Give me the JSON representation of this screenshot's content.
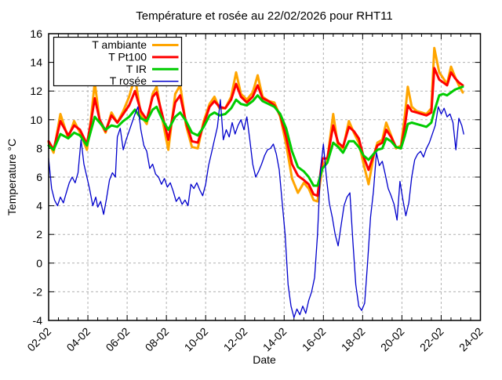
{
  "title": "Température et rosée au 22/02/2026 pour RHT11",
  "chart_data": {
    "type": "line",
    "title": "Température et rosée au 22/02/2026 pour RHT11",
    "xlabel": "Date",
    "ylabel": "Temperature °C",
    "xlim_days": [
      2,
      24
    ],
    "ylim": [
      -4,
      16
    ],
    "grid": true,
    "legend_position": "top-left",
    "grid_color": "#b0b0b0",
    "x_tick_labels": [
      "02-02",
      "04-02",
      "06-02",
      "08-02",
      "10-02",
      "12-02",
      "14-02",
      "16-02",
      "18-02",
      "20-02",
      "22-02",
      "24-02"
    ],
    "x_tick_days": [
      2,
      4,
      6,
      8,
      10,
      12,
      14,
      16,
      18,
      20,
      22,
      24
    ],
    "x_minor_step_days": 0.5,
    "y_ticks": [
      -4,
      -2,
      0,
      2,
      4,
      6,
      8,
      10,
      12,
      14,
      16
    ],
    "series": [
      {
        "name": "T ambiante",
        "color": "#ffa500",
        "width": 3,
        "x": [
          2.0,
          2.25,
          2.6,
          3.0,
          3.3,
          3.6,
          3.95,
          4.15,
          4.35,
          4.6,
          4.9,
          5.2,
          5.5,
          5.8,
          6.1,
          6.4,
          6.7,
          7.0,
          7.3,
          7.5,
          7.8,
          8.1,
          8.45,
          8.7,
          9.0,
          9.3,
          9.6,
          9.9,
          10.2,
          10.45,
          10.7,
          11.0,
          11.3,
          11.55,
          11.8,
          12.1,
          12.4,
          12.65,
          12.9,
          13.2,
          13.5,
          13.8,
          14.1,
          14.4,
          14.7,
          15.0,
          15.25,
          15.5,
          15.7,
          15.95,
          16.2,
          16.5,
          16.75,
          17.0,
          17.3,
          17.55,
          17.8,
          18.05,
          18.3,
          18.55,
          18.75,
          19.0,
          19.2,
          19.45,
          19.7,
          19.95,
          20.15,
          20.3,
          20.5,
          20.75,
          21.0,
          21.25,
          21.5,
          21.65,
          21.9,
          22.1,
          22.3,
          22.5,
          22.7,
          22.9,
          23.1
        ],
        "y": [
          8.4,
          7.7,
          10.4,
          8.7,
          9.9,
          9.1,
          7.9,
          10.0,
          12.6,
          9.9,
          9.1,
          10.5,
          9.8,
          10.6,
          11.6,
          13.0,
          10.3,
          9.7,
          11.8,
          12.3,
          10.0,
          7.9,
          11.8,
          12.4,
          9.6,
          8.1,
          8.0,
          9.9,
          11.1,
          11.6,
          10.8,
          10.8,
          11.6,
          13.3,
          11.8,
          11.4,
          11.9,
          13.1,
          11.6,
          11.3,
          11.2,
          10.2,
          8.3,
          5.9,
          4.9,
          5.6,
          5.2,
          4.4,
          4.3,
          6.8,
          7.2,
          10.4,
          8.1,
          8.0,
          9.9,
          9.1,
          8.4,
          6.9,
          5.5,
          7.4,
          8.4,
          8.6,
          9.8,
          8.9,
          8.0,
          8.2,
          10.3,
          12.3,
          10.9,
          10.6,
          10.5,
          10.4,
          10.8,
          15.0,
          13.3,
          12.9,
          12.5,
          13.7,
          13.0,
          12.4,
          11.9
        ]
      },
      {
        "name": "T Pt100",
        "color": "#ff0000",
        "width": 3,
        "x": [
          2.0,
          2.25,
          2.6,
          3.0,
          3.3,
          3.6,
          3.95,
          4.15,
          4.35,
          4.6,
          4.9,
          5.2,
          5.5,
          5.8,
          6.1,
          6.4,
          6.7,
          7.0,
          7.3,
          7.5,
          7.8,
          8.1,
          8.45,
          8.7,
          9.0,
          9.3,
          9.6,
          9.9,
          10.2,
          10.45,
          10.7,
          11.0,
          11.3,
          11.55,
          11.8,
          12.1,
          12.4,
          12.65,
          12.9,
          13.2,
          13.5,
          13.8,
          14.1,
          14.4,
          14.7,
          15.0,
          15.25,
          15.5,
          15.7,
          15.95,
          16.2,
          16.5,
          16.75,
          17.0,
          17.3,
          17.55,
          17.8,
          18.05,
          18.3,
          18.55,
          18.75,
          19.0,
          19.2,
          19.45,
          19.7,
          19.95,
          20.15,
          20.3,
          20.5,
          20.75,
          21.0,
          21.25,
          21.5,
          21.65,
          21.9,
          22.1,
          22.3,
          22.5,
          22.7,
          22.9,
          23.1
        ],
        "y": [
          8.5,
          7.9,
          9.9,
          8.9,
          9.6,
          9.3,
          8.3,
          9.8,
          11.5,
          10.0,
          9.2,
          10.3,
          9.8,
          10.4,
          11.0,
          12.0,
          10.6,
          10.0,
          11.6,
          11.9,
          10.3,
          8.6,
          11.2,
          11.7,
          9.8,
          8.5,
          8.4,
          9.7,
          10.9,
          11.3,
          10.9,
          10.8,
          11.4,
          12.5,
          11.6,
          11.2,
          11.6,
          12.4,
          11.5,
          11.3,
          11.0,
          10.3,
          8.8,
          6.9,
          6.1,
          5.8,
          5.5,
          4.8,
          4.7,
          7.3,
          7.3,
          9.6,
          8.4,
          8.1,
          9.5,
          9.2,
          8.7,
          7.4,
          6.5,
          7.5,
          8.2,
          8.4,
          9.3,
          8.8,
          8.1,
          8.0,
          9.6,
          11.0,
          10.6,
          10.5,
          10.4,
          10.3,
          10.5,
          13.6,
          12.8,
          12.6,
          12.4,
          13.3,
          12.9,
          12.6,
          12.4
        ]
      },
      {
        "name": "T IR",
        "color": "#00cc00",
        "width": 3,
        "x": [
          2.0,
          2.25,
          2.6,
          3.0,
          3.3,
          3.6,
          3.95,
          4.15,
          4.35,
          4.6,
          4.9,
          5.2,
          5.5,
          5.8,
          6.1,
          6.4,
          6.7,
          7.0,
          7.3,
          7.5,
          7.8,
          8.1,
          8.45,
          8.7,
          9.0,
          9.3,
          9.6,
          9.9,
          10.2,
          10.45,
          10.7,
          11.0,
          11.3,
          11.55,
          11.8,
          12.1,
          12.4,
          12.65,
          12.9,
          13.2,
          13.5,
          13.8,
          14.1,
          14.4,
          14.7,
          15.0,
          15.25,
          15.5,
          15.7,
          15.95,
          16.2,
          16.5,
          16.75,
          17.0,
          17.3,
          17.55,
          17.8,
          18.05,
          18.3,
          18.55,
          18.75,
          19.0,
          19.2,
          19.45,
          19.7,
          19.95,
          20.15,
          20.3,
          20.5,
          20.75,
          21.0,
          21.25,
          21.5,
          21.65,
          21.9,
          22.1,
          22.3,
          22.5,
          22.7,
          22.9,
          23.1
        ],
        "y": [
          8.2,
          7.9,
          9.0,
          8.7,
          9.1,
          8.9,
          8.2,
          9.2,
          10.2,
          9.8,
          9.3,
          9.6,
          9.5,
          9.9,
          10.2,
          10.7,
          10.1,
          9.9,
          10.7,
          10.9,
          10.0,
          9.3,
          10.2,
          10.5,
          9.9,
          9.1,
          8.9,
          9.5,
          10.3,
          10.5,
          10.3,
          10.4,
          10.8,
          11.4,
          11.1,
          11.0,
          11.3,
          11.7,
          11.3,
          11.1,
          10.9,
          10.4,
          9.4,
          7.8,
          6.7,
          6.4,
          6.0,
          5.4,
          5.4,
          6.6,
          7.0,
          8.4,
          8.1,
          7.7,
          8.5,
          8.5,
          8.1,
          7.5,
          7.2,
          7.6,
          7.9,
          8.0,
          8.7,
          8.5,
          8.1,
          8.0,
          8.9,
          9.7,
          9.8,
          9.7,
          9.6,
          9.5,
          9.8,
          10.6,
          11.7,
          11.8,
          11.7,
          11.9,
          12.1,
          12.2,
          12.3
        ]
      },
      {
        "name": "T rosée",
        "color": "#0000cc",
        "width": 1.3,
        "x": [
          2.0,
          2.15,
          2.3,
          2.45,
          2.6,
          2.75,
          2.9,
          3.05,
          3.2,
          3.35,
          3.5,
          3.65,
          3.8,
          3.95,
          4.1,
          4.25,
          4.4,
          4.5,
          4.65,
          4.8,
          4.95,
          5.1,
          5.25,
          5.4,
          5.5,
          5.65,
          5.8,
          5.95,
          6.1,
          6.25,
          6.4,
          6.55,
          6.7,
          6.85,
          7.0,
          7.15,
          7.3,
          7.45,
          7.6,
          7.75,
          7.9,
          8.05,
          8.2,
          8.35,
          8.5,
          8.65,
          8.8,
          8.95,
          9.1,
          9.25,
          9.4,
          9.55,
          9.7,
          9.85,
          10.0,
          10.15,
          10.3,
          10.45,
          10.6,
          10.75,
          10.9,
          11.05,
          11.2,
          11.35,
          11.5,
          11.65,
          11.8,
          11.95,
          12.1,
          12.25,
          12.4,
          12.55,
          12.7,
          12.85,
          13.0,
          13.15,
          13.3,
          13.45,
          13.6,
          13.75,
          13.9,
          14.05,
          14.2,
          14.35,
          14.5,
          14.65,
          14.8,
          14.95,
          15.1,
          15.25,
          15.4,
          15.55,
          15.7,
          15.85,
          16.0,
          16.15,
          16.3,
          16.45,
          16.6,
          16.75,
          16.9,
          17.05,
          17.2,
          17.35,
          17.5,
          17.65,
          17.8,
          17.95,
          18.1,
          18.25,
          18.4,
          18.55,
          18.7,
          18.85,
          19.0,
          19.15,
          19.3,
          19.45,
          19.6,
          19.75,
          19.9,
          20.05,
          20.2,
          20.35,
          20.5,
          20.65,
          20.8,
          20.95,
          21.1,
          21.25,
          21.4,
          21.55,
          21.7,
          21.85,
          22.0,
          22.15,
          22.3,
          22.45,
          22.6,
          22.75,
          22.9,
          23.05,
          23.15
        ],
        "y": [
          7.3,
          5.2,
          4.4,
          4.0,
          4.6,
          4.2,
          4.9,
          5.6,
          6.0,
          5.6,
          6.3,
          8.6,
          6.9,
          6.0,
          5.1,
          4.0,
          4.6,
          3.9,
          4.3,
          3.4,
          4.5,
          5.8,
          6.3,
          6.0,
          8.8,
          9.4,
          7.9,
          8.6,
          9.2,
          9.8,
          10.4,
          10.9,
          9.3,
          8.2,
          7.8,
          6.6,
          6.9,
          6.2,
          6.0,
          5.5,
          5.9,
          5.3,
          5.6,
          5.0,
          4.3,
          4.6,
          4.1,
          4.4,
          4.0,
          5.5,
          5.2,
          5.6,
          5.1,
          4.7,
          5.5,
          6.8,
          7.7,
          8.6,
          9.5,
          11.4,
          8.6,
          9.3,
          8.8,
          9.8,
          9.0,
          9.6,
          10.0,
          9.3,
          10.2,
          8.6,
          6.9,
          6.0,
          6.4,
          6.9,
          7.5,
          7.9,
          8.0,
          8.3,
          7.6,
          6.5,
          4.2,
          2.0,
          -1.5,
          -3.0,
          -3.8,
          -3.2,
          -3.6,
          -3.0,
          -3.5,
          -2.6,
          -2.0,
          -1.0,
          2.0,
          6.5,
          8.3,
          6.0,
          4.2,
          3.2,
          2.0,
          1.2,
          2.6,
          4.0,
          4.6,
          4.9,
          1.5,
          -1.5,
          -3.0,
          -3.3,
          -2.8,
          0.0,
          3.2,
          5.0,
          7.7,
          6.8,
          7.1,
          6.2,
          5.2,
          4.7,
          4.1,
          3.0,
          5.7,
          4.4,
          3.3,
          4.2,
          6.0,
          7.2,
          7.6,
          7.8,
          7.4,
          8.0,
          8.4,
          9.0,
          9.6,
          10.9,
          10.4,
          10.8,
          10.2,
          10.4,
          9.8,
          7.9,
          10.1,
          9.6,
          9.0
        ]
      }
    ]
  }
}
